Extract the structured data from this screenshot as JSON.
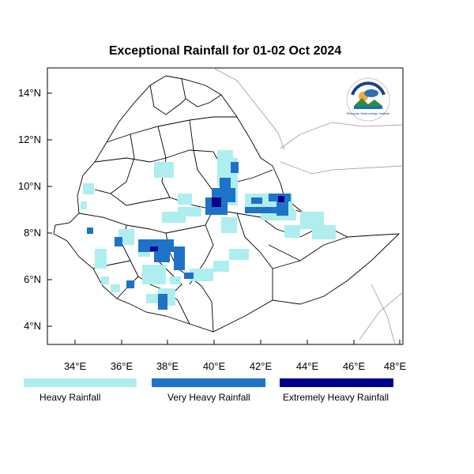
{
  "title": "Exceptional Rainfall for 01-02 Oct 2024",
  "axes": {
    "lat_labels": [
      "14°N",
      "12°N",
      "10°N",
      "8°N",
      "6°N",
      "4°N"
    ],
    "lon_labels": [
      "34°E",
      "36°E",
      "38°E",
      "40°E",
      "42°E",
      "44°E",
      "46°E",
      "48°E"
    ]
  },
  "legend": [
    {
      "label": "Heavy Rainfall",
      "color": "#aeeeee"
    },
    {
      "label": "Very Heavy Rainfall",
      "color": "#1e72c8"
    },
    {
      "label": "Extremely Heavy Rainfall",
      "color": "#00008b"
    }
  ],
  "logo": {
    "text": "Ethiopian Meteorology Institute",
    "icon": "meteorology-institute-logo"
  }
}
